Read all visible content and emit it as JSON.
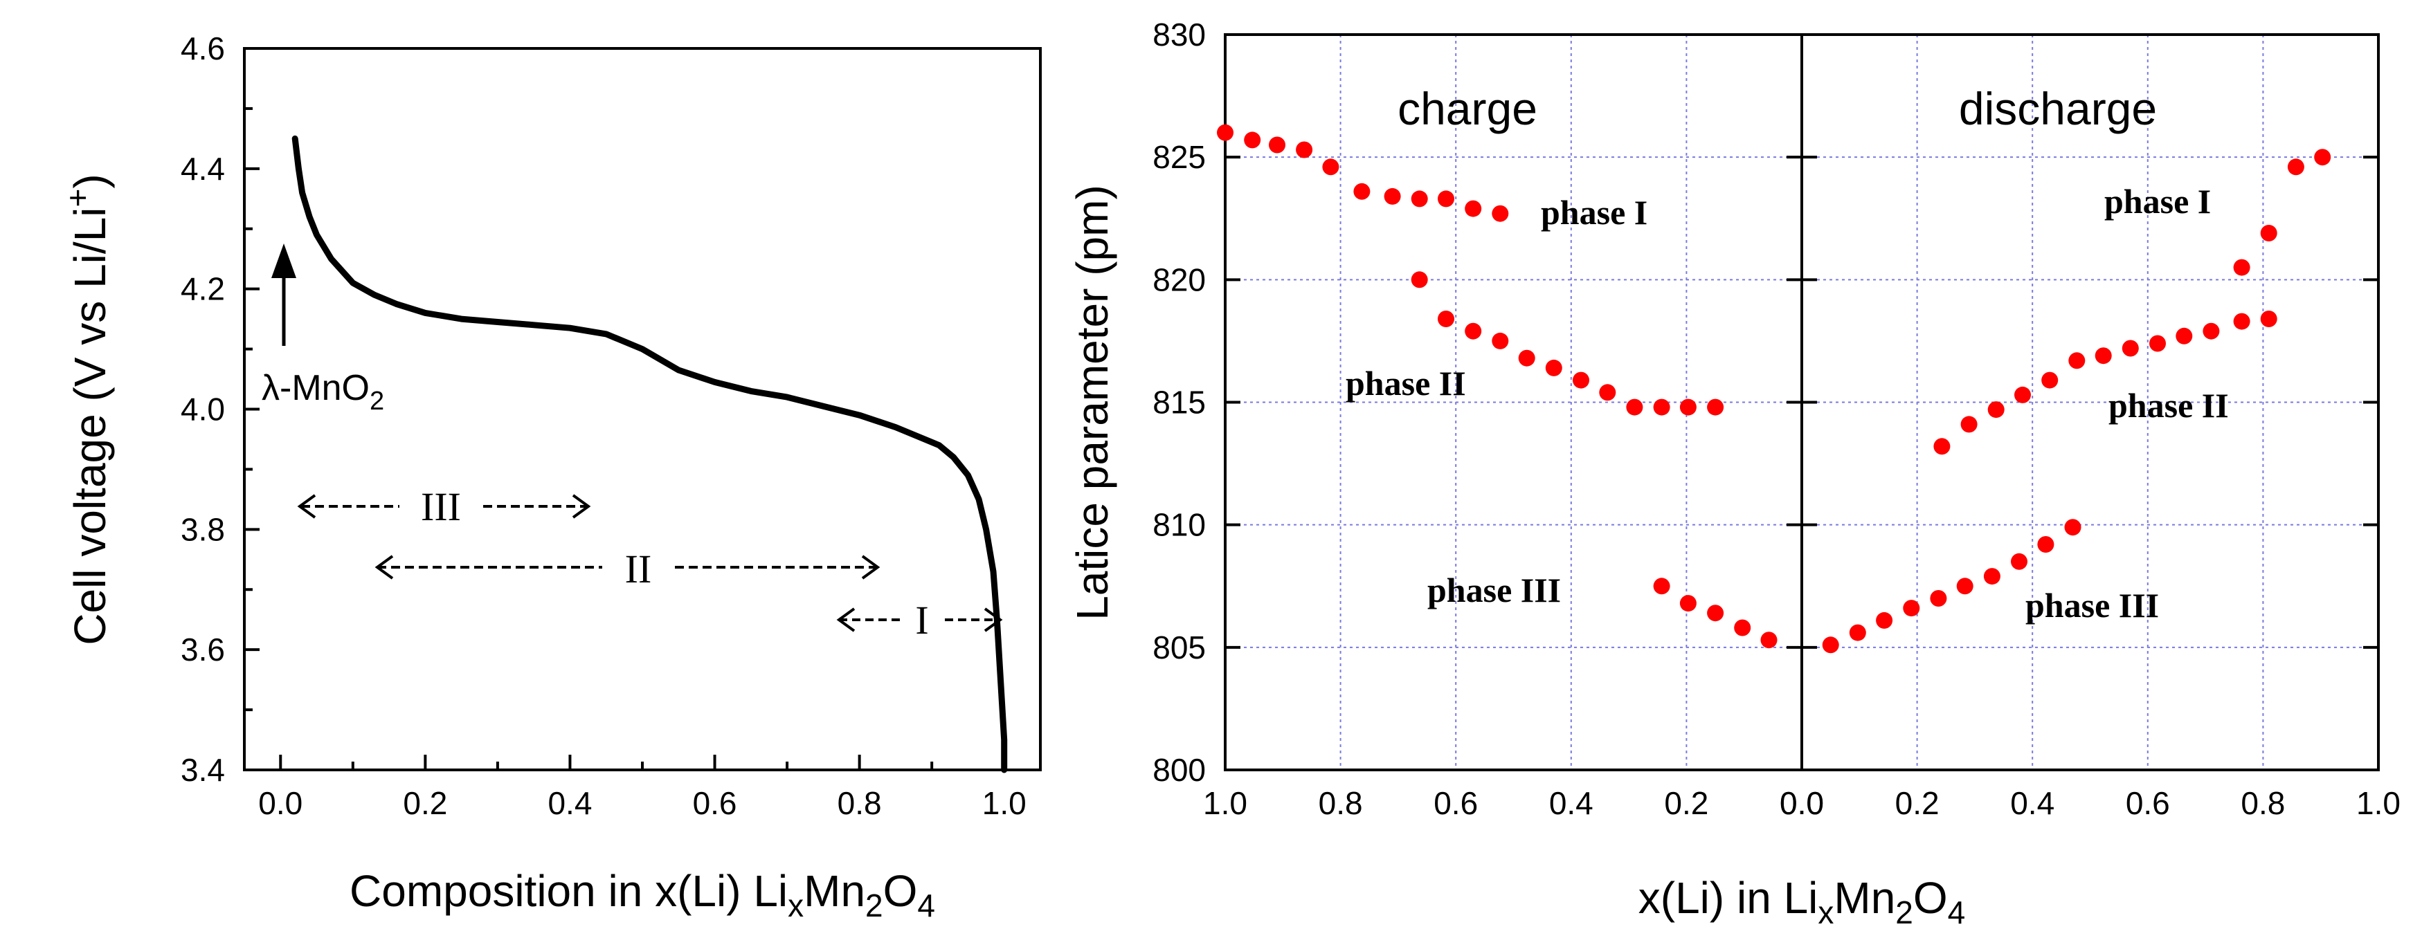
{
  "chart_data": [
    {
      "type": "line",
      "xlabel": "Composition in x(Li) LixMn2O4",
      "xlabel_parts": [
        "Composition in x(Li) Li",
        "x",
        "Mn",
        "2",
        "O",
        "4"
      ],
      "ylabel": "Cell voltage (V vs Li/Li+)",
      "ylabel_parts": [
        "Cell voltage (V vs Li/Li",
        "+",
        ")"
      ],
      "xlim": [
        -0.05,
        1.05
      ],
      "ylim": [
        3.4,
        4.6
      ],
      "xticks": [
        "0.0",
        "0.2",
        "0.4",
        "0.6",
        "0.8",
        "1.0"
      ],
      "yticks": [
        "3.4",
        "3.6",
        "3.8",
        "4.0",
        "4.2",
        "4.4",
        "4.6"
      ],
      "grid": false,
      "series": [
        {
          "x": [
            0.02,
            0.025,
            0.03,
            0.04,
            0.05,
            0.07,
            0.1,
            0.13,
            0.16,
            0.2,
            0.25,
            0.3,
            0.35,
            0.4,
            0.45,
            0.5,
            0.55,
            0.6,
            0.65,
            0.7,
            0.75,
            0.8,
            0.85,
            0.88,
            0.91,
            0.93,
            0.95,
            0.965,
            0.975,
            0.985,
            0.99,
            0.995,
            1.0,
            1.0
          ],
          "y": [
            4.45,
            4.4,
            4.36,
            4.32,
            4.29,
            4.25,
            4.21,
            4.19,
            4.175,
            4.16,
            4.15,
            4.145,
            4.14,
            4.135,
            4.125,
            4.1,
            4.065,
            4.045,
            4.03,
            4.02,
            4.005,
            3.99,
            3.97,
            3.955,
            3.94,
            3.92,
            3.89,
            3.85,
            3.8,
            3.73,
            3.65,
            3.55,
            3.45,
            3.4
          ]
        }
      ],
      "annotations": {
        "lambda_label": [
          "λ-MnO",
          "2"
        ],
        "region_III": "III",
        "region_II": "II",
        "region_I": "I"
      }
    },
    {
      "type": "scatter",
      "ylabel": "Latice parameter (pm)",
      "xlabel": "x(Li) in LixMn2O4",
      "xlabel_parts": [
        "x(Li) in Li",
        "x",
        "Mn",
        "2",
        "O",
        "4"
      ],
      "ylim": [
        800,
        830
      ],
      "yticks": [
        "800",
        "805",
        "810",
        "815",
        "820",
        "825",
        "830"
      ],
      "grid": true,
      "marker_color": "#ff0000",
      "panels": [
        {
          "label": "charge",
          "xlim": [
            1.0,
            0.0
          ],
          "xticks": [
            "1.0",
            "0.8",
            "0.6",
            "0.4",
            "0.2",
            "0.0"
          ],
          "series": [
            {
              "label": "phase I",
              "x": [
                1.0,
                0.953,
                0.91,
                0.863,
                0.817,
                0.763,
                0.71,
                0.663,
                0.617,
                0.57,
                0.523
              ],
              "y": [
                826.0,
                825.7,
                825.5,
                825.3,
                824.6,
                823.6,
                823.4,
                823.3,
                823.3,
                822.9,
                822.7
              ]
            },
            {
              "label": "phase II",
              "x": [
                0.663,
                0.617,
                0.57,
                0.523,
                0.477,
                0.43,
                0.383,
                0.337,
                0.29,
                0.243,
                0.197,
                0.15
              ],
              "y": [
                820.0,
                818.4,
                817.9,
                817.5,
                816.8,
                816.4,
                815.9,
                815.4,
                814.8,
                814.8,
                814.8,
                814.8
              ]
            },
            {
              "label": "phase III",
              "x": [
                0.243,
                0.197,
                0.15,
                0.103,
                0.057
              ],
              "y": [
                807.5,
                806.8,
                806.4,
                805.8,
                805.3
              ]
            }
          ]
        },
        {
          "label": "discharge",
          "xlim": [
            0.0,
            1.0
          ],
          "xticks": [
            "0.0",
            "0.2",
            "0.4",
            "0.6",
            "0.8",
            "1.0"
          ],
          "series": [
            {
              "label": "phase I",
              "x": [
                0.763,
                0.81,
                0.857,
                0.903
              ],
              "y": [
                820.5,
                821.9,
                824.6,
                825.0
              ]
            },
            {
              "label": "phase II",
              "x": [
                0.243,
                0.29,
                0.337,
                0.383,
                0.43,
                0.477,
                0.523,
                0.57,
                0.617,
                0.663,
                0.71,
                0.763,
                0.81
              ],
              "y": [
                813.2,
                814.1,
                814.7,
                815.3,
                815.9,
                816.7,
                816.9,
                817.2,
                817.4,
                817.7,
                817.9,
                818.3,
                818.4
              ]
            },
            {
              "label": "phase III",
              "x": [
                0.05,
                0.097,
                0.143,
                0.19,
                0.237,
                0.283,
                0.33,
                0.377,
                0.423,
                0.47
              ],
              "y": [
                805.1,
                805.6,
                806.1,
                806.6,
                807.0,
                807.5,
                807.9,
                808.5,
                809.2,
                809.9
              ]
            }
          ]
        }
      ]
    }
  ]
}
